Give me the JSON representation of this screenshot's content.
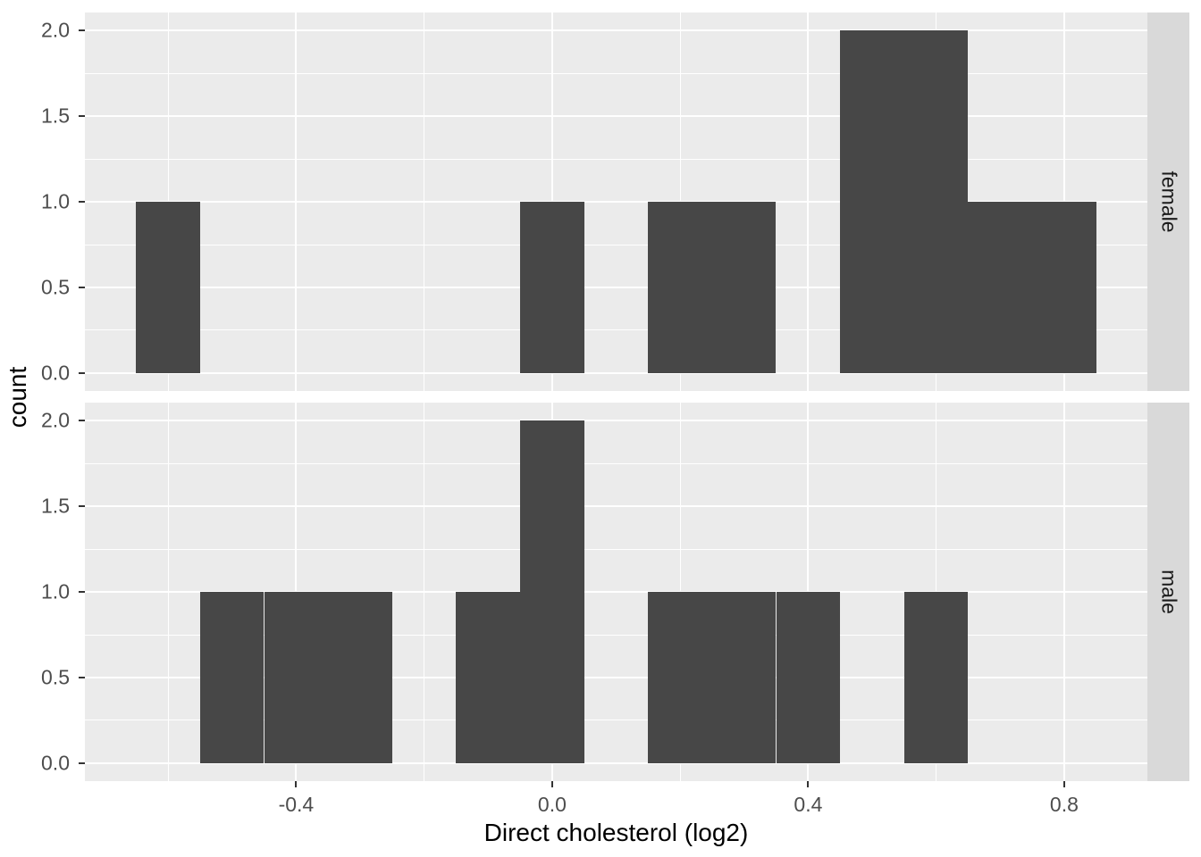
{
  "chart_data": {
    "type": "bar",
    "variant": "faceted-histogram",
    "title": "",
    "xlabel": "Direct cholesterol (log2)",
    "ylabel": "count",
    "legend": "none",
    "grid": true,
    "bin_width": 0.1,
    "facet": {
      "strip_position": "right",
      "labels": [
        "female",
        "male"
      ]
    },
    "facets": [
      {
        "label": "female",
        "bins": [
          {
            "x0": -0.65,
            "x1": -0.55,
            "count": 1
          },
          {
            "x0": -0.05,
            "x1": 0.05,
            "count": 1
          },
          {
            "x0": 0.15,
            "x1": 0.25,
            "count": 1
          },
          {
            "x0": 0.25,
            "x1": 0.35,
            "count": 1
          },
          {
            "x0": 0.45,
            "x1": 0.55,
            "count": 2
          },
          {
            "x0": 0.55,
            "x1": 0.65,
            "count": 2
          },
          {
            "x0": 0.65,
            "x1": 0.75,
            "count": 1
          },
          {
            "x0": 0.75,
            "x1": 0.85,
            "count": 1
          }
        ]
      },
      {
        "label": "male",
        "bins": [
          {
            "x0": -0.55,
            "x1": -0.45,
            "count": 1
          },
          {
            "x0": -0.45,
            "x1": -0.35,
            "count": 1
          },
          {
            "x0": -0.35,
            "x1": -0.25,
            "count": 1
          },
          {
            "x0": -0.15,
            "x1": -0.05,
            "count": 1
          },
          {
            "x0": -0.05,
            "x1": 0.05,
            "count": 2
          },
          {
            "x0": 0.15,
            "x1": 0.25,
            "count": 1
          },
          {
            "x0": 0.25,
            "x1": 0.35,
            "count": 1
          },
          {
            "x0": 0.35,
            "x1": 0.45,
            "count": 1
          },
          {
            "x0": 0.55,
            "x1": 0.65,
            "count": 1
          }
        ]
      }
    ],
    "x_axis": {
      "ticks": [
        -0.4,
        0.0,
        0.4,
        0.8
      ],
      "tick_labels": [
        "-0.4",
        "0.0",
        "0.4",
        "0.8"
      ],
      "minor_ticks": [
        -0.6,
        -0.2,
        0.2,
        0.6
      ],
      "range": [
        -0.73,
        0.93
      ]
    },
    "y_axis": {
      "ticks": [
        0.0,
        0.5,
        1.0,
        1.5,
        2.0
      ],
      "tick_labels": [
        "0.0",
        "0.5",
        "1.0",
        "1.5",
        "2.0"
      ],
      "minor_ticks": [
        0.25,
        0.75,
        1.25,
        1.75
      ],
      "range": [
        -0.105,
        2.105
      ]
    },
    "theme": {
      "bar_fill": "#474747",
      "panel_background": "#EBEBEB",
      "grid_color": "#FFFFFF",
      "strip_background": "#D9D9D9",
      "strip_text_color": "#1A1A1A",
      "tick_label_color": "#4D4D4D",
      "tick_mark_color": "#333333",
      "axis_title_color": "#000000",
      "figure_background": "#FFFFFF"
    }
  }
}
